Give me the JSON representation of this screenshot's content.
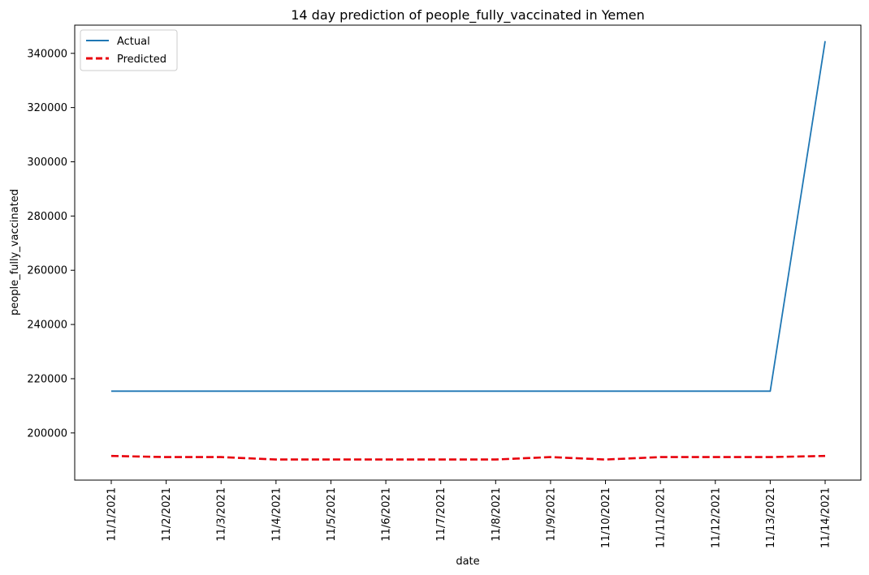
{
  "chart_data": {
    "type": "line",
    "title": "14 day prediction of people_fully_vaccinated in Yemen",
    "xlabel": "date",
    "ylabel": "people_fully_vaccinated",
    "categories": [
      "11/1/2021",
      "11/2/2021",
      "11/3/2021",
      "11/4/2021",
      "11/5/2021",
      "11/6/2021",
      "11/7/2021",
      "11/8/2021",
      "11/9/2021",
      "11/10/2021",
      "11/11/2021",
      "11/12/2021",
      "11/13/2021",
      "11/14/2021"
    ],
    "yticks": [
      200000,
      220000,
      240000,
      260000,
      280000,
      300000,
      320000,
      340000
    ],
    "ylim": [
      182600,
      350400
    ],
    "grid": false,
    "legend_position": "top-left",
    "series": [
      {
        "name": "Actual",
        "color": "#1f77b4",
        "style": "solid",
        "values": [
          215400,
          215400,
          215400,
          215400,
          215400,
          215400,
          215400,
          215400,
          215400,
          215400,
          215400,
          215400,
          215400,
          344500
        ]
      },
      {
        "name": "Predicted",
        "color": "#e8000b",
        "style": "dashed",
        "values": [
          191500,
          191100,
          191100,
          190200,
          190200,
          190200,
          190200,
          190200,
          191100,
          190200,
          191100,
          191100,
          191100,
          191500
        ]
      }
    ]
  }
}
